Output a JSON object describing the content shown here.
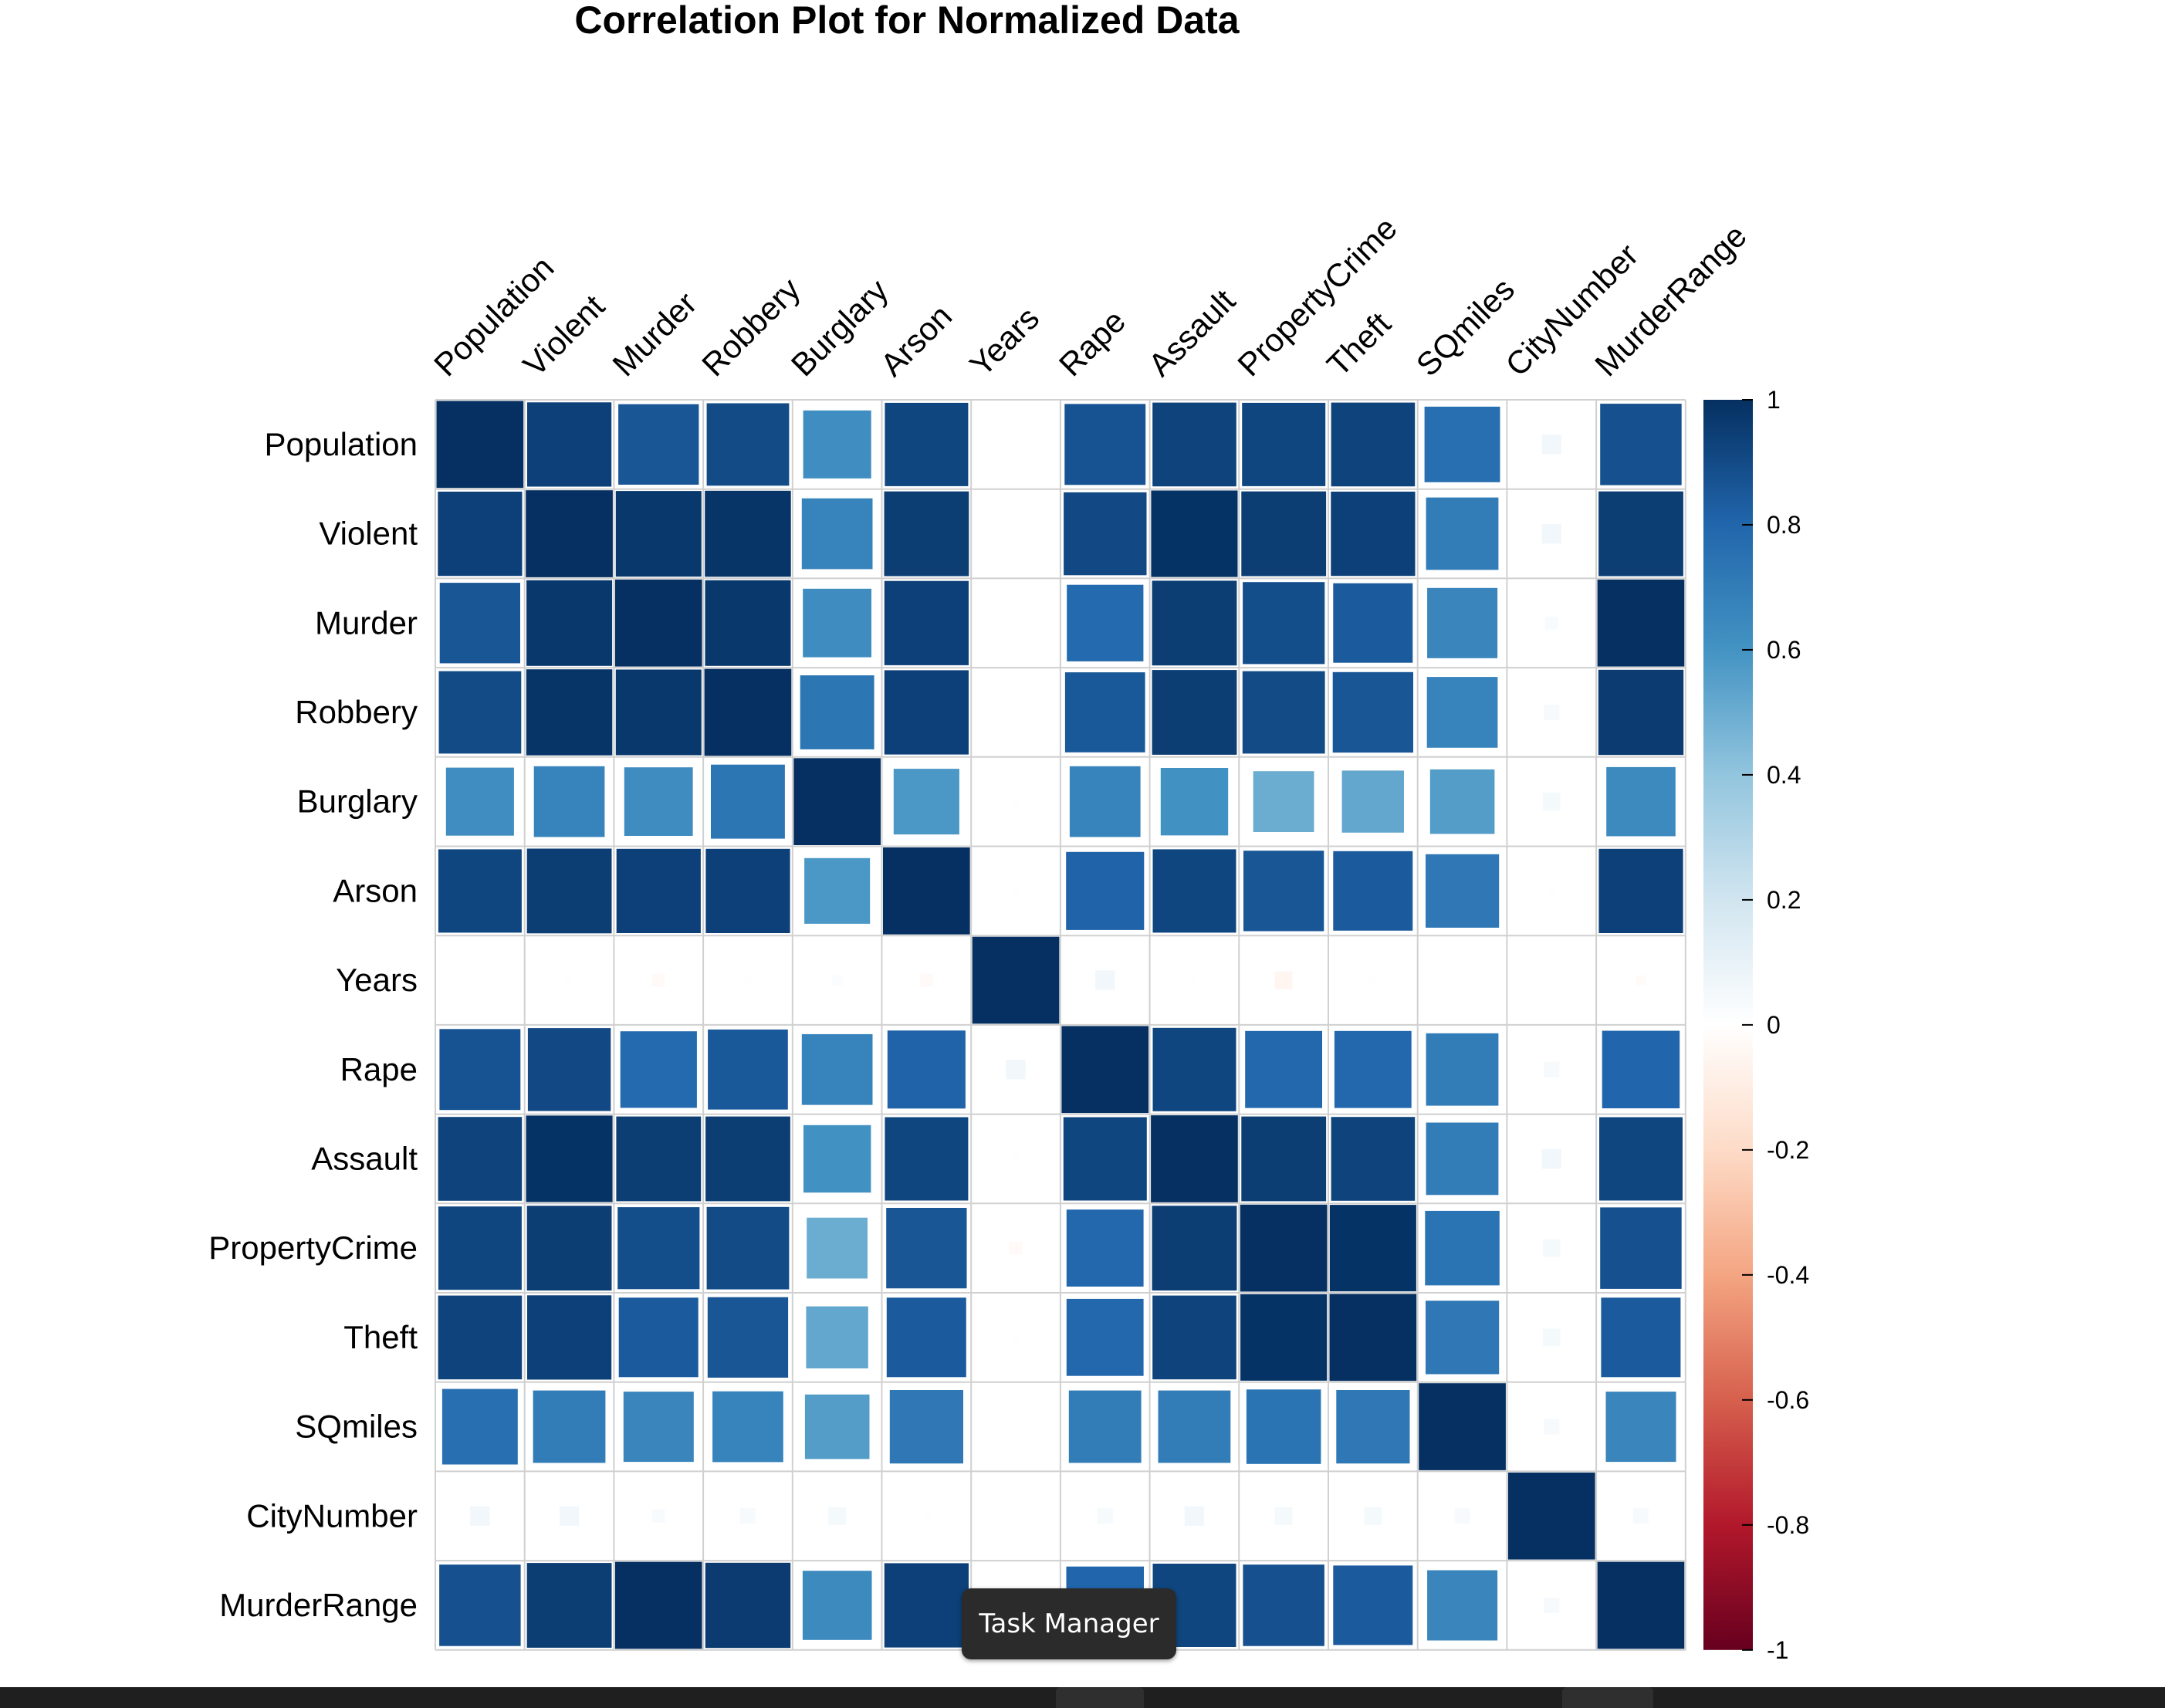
{
  "chart_data": {
    "type": "heatmap",
    "title": "Correlation Plot for Normalized Data",
    "variables": [
      "Population",
      "Violent",
      "Murder",
      "Robbery",
      "Burglary",
      "Arson",
      "Years",
      "Rape",
      "Assault",
      "PropertyCrime",
      "Theft",
      "SQmiles",
      "CityNumber",
      "MurderRange"
    ],
    "matrix": [
      [
        1.0,
        0.94,
        0.86,
        0.9,
        0.62,
        0.92,
        0.0,
        0.87,
        0.93,
        0.92,
        0.93,
        0.76,
        0.06,
        0.88
      ],
      [
        0.94,
        1.0,
        0.97,
        0.98,
        0.67,
        0.95,
        0.0,
        0.91,
        0.99,
        0.95,
        0.94,
        0.7,
        0.06,
        0.95
      ],
      [
        0.86,
        0.97,
        1.0,
        0.97,
        0.63,
        0.94,
        0.01,
        0.78,
        0.95,
        0.89,
        0.84,
        0.66,
        0.03,
        1.0
      ],
      [
        0.9,
        0.98,
        0.97,
        1.0,
        0.73,
        0.94,
        0.0,
        0.85,
        0.95,
        0.9,
        0.86,
        0.67,
        0.04,
        0.96
      ],
      [
        0.62,
        0.67,
        0.63,
        0.73,
        1.0,
        0.58,
        0.01,
        0.67,
        0.61,
        0.5,
        0.52,
        0.56,
        0.05,
        0.64
      ],
      [
        0.92,
        0.95,
        0.94,
        0.94,
        0.58,
        1.0,
        0.01,
        0.81,
        0.92,
        0.86,
        0.84,
        0.72,
        0.01,
        0.94
      ],
      [
        0.0,
        0.01,
        -0.03,
        0.01,
        0.02,
        -0.03,
        1.0,
        0.06,
        0.01,
        -0.05,
        0.01,
        0.0,
        0.0,
        -0.02
      ],
      [
        0.87,
        0.91,
        0.78,
        0.85,
        0.67,
        0.81,
        0.06,
        1.0,
        0.92,
        0.79,
        0.79,
        0.7,
        0.04,
        0.8
      ],
      [
        0.93,
        0.99,
        0.95,
        0.95,
        0.61,
        0.92,
        0.01,
        0.92,
        1.0,
        0.95,
        0.93,
        0.7,
        0.06,
        0.92
      ],
      [
        0.92,
        0.95,
        0.89,
        0.9,
        0.5,
        0.86,
        -0.03,
        0.79,
        0.95,
        1.0,
        0.99,
        0.74,
        0.05,
        0.88
      ],
      [
        0.93,
        0.94,
        0.84,
        0.86,
        0.52,
        0.84,
        0.01,
        0.79,
        0.93,
        0.99,
        1.0,
        0.72,
        0.05,
        0.84
      ],
      [
        0.76,
        0.7,
        0.66,
        0.67,
        0.56,
        0.72,
        0.0,
        0.7,
        0.7,
        0.74,
        0.72,
        1.0,
        0.04,
        0.66
      ],
      [
        0.06,
        0.06,
        0.03,
        0.04,
        0.05,
        0.01,
        0.0,
        0.04,
        0.06,
        0.05,
        0.05,
        0.04,
        1.0,
        0.04
      ],
      [
        0.88,
        0.95,
        1.0,
        0.96,
        0.64,
        0.94,
        -0.02,
        0.8,
        0.92,
        0.88,
        0.84,
        0.66,
        0.04,
        1.0
      ]
    ],
    "method": "square",
    "colorbar": {
      "range": [
        -1,
        1
      ],
      "ticks": [
        "1",
        "0.8",
        "0.6",
        "0.4",
        "0.2",
        "0",
        "-0.2",
        "-0.4",
        "-0.6",
        "-0.8",
        "-1"
      ],
      "colors": [
        "#67001F",
        "#B2182B",
        "#D6604D",
        "#F4A582",
        "#FDDBC7",
        "#FFFFFF",
        "#D1E5F0",
        "#92C5DE",
        "#4393C3",
        "#2166AC",
        "#053061"
      ]
    }
  },
  "tooltip": {
    "text": "Task Manager"
  }
}
